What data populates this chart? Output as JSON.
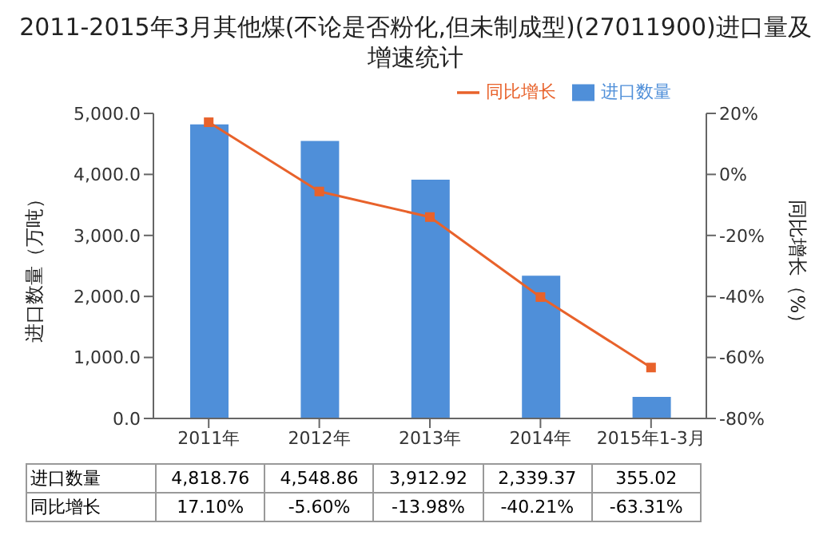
{
  "chart_data": {
    "type": "bar",
    "title": "2011-2015年3月其他煤(不论是否粉化,但未制成型)(27011900)进口量及增速统计",
    "categories": [
      "2011年",
      "2012年",
      "2013年",
      "2014年",
      "2015年1-3月"
    ],
    "series": [
      {
        "name": "进口数量",
        "color": "#4f8fd9",
        "values": [
          4818.76,
          4548.86,
          3912.92,
          2339.37,
          355.02
        ],
        "value_labels": [
          "4,818.76",
          "4,548.86",
          "3,912.92",
          "2,339.37",
          "355.02"
        ]
      },
      {
        "name": "同比增长",
        "type": "line",
        "axis": "y2",
        "color": "#e8622b",
        "values": [
          17.1,
          -5.6,
          -13.98,
          -40.21,
          -63.31
        ],
        "value_labels": [
          "17.10%",
          "-5.60%",
          "-13.98%",
          "-40.21%",
          "-63.31%"
        ]
      }
    ],
    "ylabel": "进口数量（万吨）",
    "y2label": "同比增长（%）",
    "ylim": [
      0,
      5000
    ],
    "yticks": [
      {
        "value": 0,
        "label": "0.0"
      },
      {
        "value": 1000,
        "label": "1,000.0"
      },
      {
        "value": 2000,
        "label": "2,000.0"
      },
      {
        "value": 3000,
        "label": "3,000.0"
      },
      {
        "value": 4000,
        "label": "4,000.0"
      },
      {
        "value": 5000,
        "label": "5,000.0"
      }
    ],
    "y2lim": [
      -80,
      20
    ],
    "y2ticks": [
      {
        "value": -80,
        "label": "-80%"
      },
      {
        "value": -60,
        "label": "-60%"
      },
      {
        "value": -40,
        "label": "-40%"
      },
      {
        "value": -20,
        "label": "-20%"
      },
      {
        "value": 0,
        "label": "0%"
      },
      {
        "value": 20,
        "label": "20%"
      }
    ],
    "legend": "top right",
    "marker": "square"
  }
}
